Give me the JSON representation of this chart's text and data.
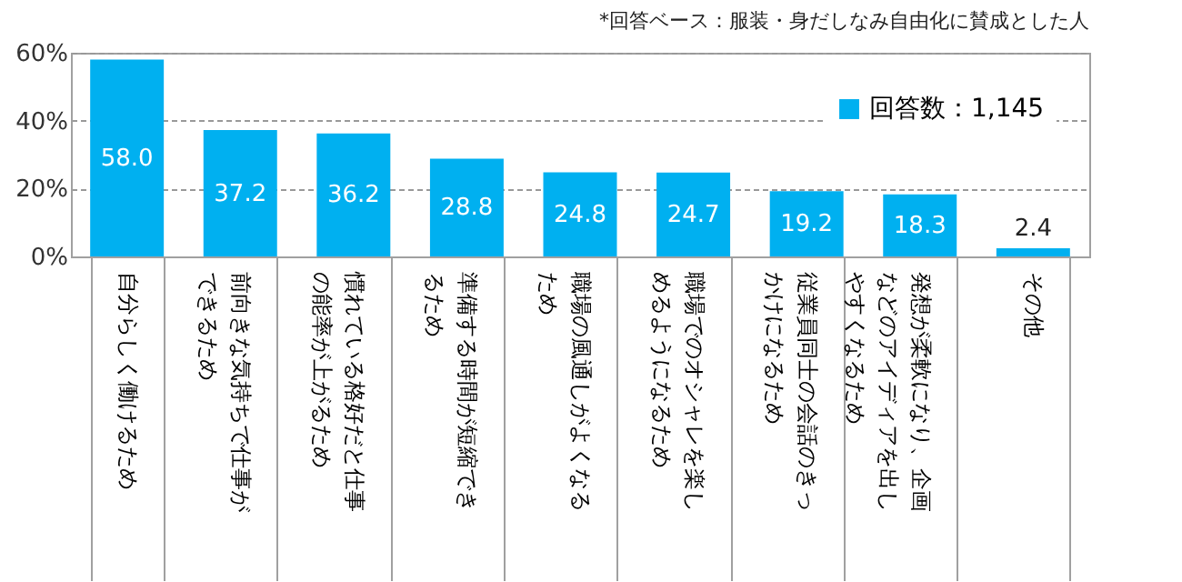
{
  "chart_data": {
    "type": "bar",
    "annotations": [
      "*回答ベース：服装・身だしなみ自由化に賛成とした人"
    ],
    "categories": [
      "自分らしく働けるため",
      "前向きな気持ちで仕事ができるため",
      "慣れている格好だと仕事の能率が上がるため",
      "準備する時間が短縮できるため",
      "職場の風通しがよくなるため",
      "職場でのオシャレを楽しめるようになるため",
      "従業員同士の会話のきっかけになるため",
      "発想が柔軟になり、企画などのアイディアを出しやすくなるため",
      "その他"
    ],
    "series": [
      {
        "name": "回答数：1,145",
        "color": "#00b0f0",
        "values": [
          58.0,
          37.2,
          36.2,
          28.8,
          24.8,
          24.7,
          19.2,
          18.3,
          2.4
        ],
        "value_labels": [
          "58.0",
          "37.2",
          "36.2",
          "28.8",
          "24.8",
          "24.7",
          "19.2",
          "18.3",
          "2.4"
        ]
      }
    ],
    "ylim": [
      0,
      60
    ],
    "yticks": [
      {
        "value": 0,
        "label": "0%"
      },
      {
        "value": 20,
        "label": "20%"
      },
      {
        "value": 40,
        "label": "40%"
      },
      {
        "value": 60,
        "label": "60%"
      }
    ],
    "grid": "y",
    "legend": "top right"
  }
}
